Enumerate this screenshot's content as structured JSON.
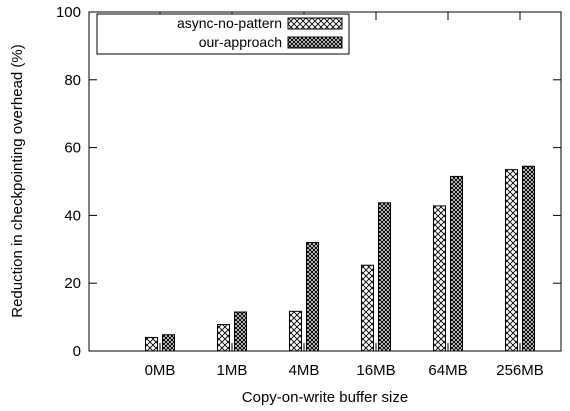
{
  "chart_data": {
    "type": "bar",
    "xlabel": "Copy-on-write buffer size",
    "ylabel": "Reduction in checkpointing overhead (%)",
    "ylim": [
      0,
      100
    ],
    "yticks": [
      0,
      20,
      40,
      60,
      80,
      100
    ],
    "categories": [
      "0MB",
      "1MB",
      "4MB",
      "16MB",
      "64MB",
      "256MB"
    ],
    "series": [
      {
        "name": "async-no-pattern",
        "pattern": "crosshatch",
        "values": [
          4,
          7.8,
          11.7,
          25.3,
          42.8,
          53.5
        ]
      },
      {
        "name": "our-approach",
        "pattern": "dense-dots",
        "values": [
          4.8,
          11.5,
          32,
          43.7,
          51.5,
          54.5
        ]
      }
    ],
    "legend_position": "top-left",
    "grid": false
  }
}
